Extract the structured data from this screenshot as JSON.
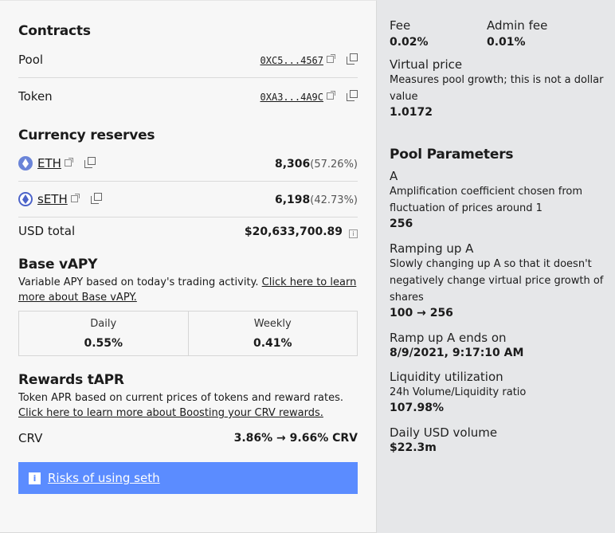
{
  "contracts": {
    "title": "Contracts",
    "pool_label": "Pool",
    "pool_address": "0XC5...4567",
    "token_label": "Token",
    "token_address": "0XA3...4A9C"
  },
  "reserves": {
    "title": "Currency reserves",
    "items": [
      {
        "symbol": "ETH",
        "amount": "8,306",
        "pct": "(57.26%)",
        "icon": "eth-icon"
      },
      {
        "symbol": "sETH",
        "amount": "6,198",
        "pct": "(42.73%)",
        "icon": "seth-icon"
      }
    ],
    "usd_label": "USD total",
    "usd_value": "$20,633,700.89"
  },
  "base_vapy": {
    "title": "Base vAPY",
    "desc": "Variable APY based on today's trading activity. ",
    "link": "Click here to learn more about Base vAPY.",
    "daily_label": "Daily",
    "daily_value": "0.55%",
    "weekly_label": "Weekly",
    "weekly_value": "0.41%"
  },
  "rewards": {
    "title": "Rewards tAPR",
    "desc": "Token APR based on current prices of tokens and reward rates.",
    "link": "Click here to learn more about Boosting your CRV rewards.",
    "crv_label": "CRV",
    "crv_value": "3.86% → 9.66% CRV"
  },
  "banner": {
    "icon": "i",
    "text": "Risks of using seth"
  },
  "sidebar": {
    "fee_label": "Fee",
    "fee_value": "0.02%",
    "admin_fee_label": "Admin fee",
    "admin_fee_value": "0.01%",
    "vprice_label": "Virtual price",
    "vprice_desc": "Measures pool growth; this is not a dollar value",
    "vprice_value": "1.0172",
    "params_title": "Pool Parameters",
    "a_label": "A",
    "a_desc": "Amplification coefficient chosen from fluctuation of prices around 1",
    "a_value": "256",
    "ramp_label": "Ramping up A",
    "ramp_desc": "Slowly changing up A so that it doesn't negatively change virtual price growth of shares",
    "ramp_value": "100 → 256",
    "ramp_end_label": "Ramp up A ends on",
    "ramp_end_value": "8/9/2021, 9:17:10 AM",
    "liq_label": "Liquidity utilization",
    "liq_desc": "24h Volume/Liquidity ratio",
    "liq_value": "107.98%",
    "daily_vol_label": "Daily USD volume",
    "daily_vol_value": "$22.3m"
  }
}
